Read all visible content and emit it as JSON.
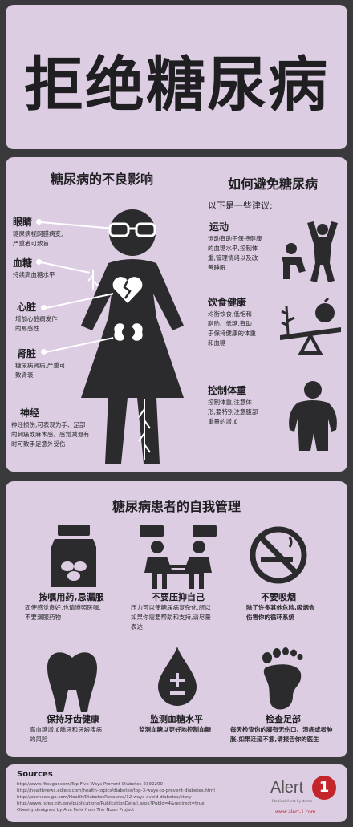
{
  "title": "拒绝糖尿病",
  "effects": {
    "heading": "糖尿病的不良影响",
    "eyes": {
      "label": "眼睛",
      "desc": [
        "糖尿病视网膜病变,",
        "严重者可致盲"
      ]
    },
    "blood_sugar": {
      "label": "血糖",
      "desc": [
        "持续高血糖水平"
      ]
    },
    "heart": {
      "label": "心脏",
      "desc": [
        "增加心脏病发作",
        "的易感性"
      ]
    },
    "kidney": {
      "label": "肾脏",
      "desc": [
        "糖尿病肾病,严重可",
        "致肾衰"
      ]
    },
    "nerves": {
      "label": "神经",
      "desc": [
        "神经损伤,可表现为手、足部",
        "的刺痛或麻木感。感觉减退有",
        "时可致手足意外受伤"
      ]
    }
  },
  "avoid": {
    "heading": "如何避免糖尿病",
    "intro": "以下是一些建议:",
    "exercise": {
      "label": "运动",
      "desc": [
        "运动有助于保持健康",
        "的血糖水平,控制体",
        "重,管理情绪以及改",
        "善睡眠"
      ]
    },
    "diet": {
      "label": "饮食健康",
      "desc": [
        "均衡饮食,低饱和",
        "脂肪、低糖,有助",
        "于保持健康的体重",
        "和血糖"
      ]
    },
    "weight": {
      "label": "控制体重",
      "desc": [
        "控制体重,注意体",
        "形,要特别注意腹部",
        "重量的增加"
      ]
    }
  },
  "self_management": {
    "heading": "糖尿病患者的自我管理",
    "items": [
      {
        "label": "按嘱用药,忌漏服",
        "desc": [
          "即使感觉良好,也请遵照医嘱,",
          "不要漏服药物"
        ]
      },
      {
        "label": "不要压抑自己",
        "desc": [
          "压力可以使糖尿病复杂化,所以",
          "如果你需要帮助和支持,请尽量",
          "表达"
        ]
      },
      {
        "label": "不要吸烟",
        "desc": [
          "除了许多其他危险,吸烟会",
          "伤害你的循环系统"
        ]
      },
      {
        "label": "保持牙齿健康",
        "desc": [
          "高血糖增加龋牙和牙龈疾病",
          "的风险"
        ]
      },
      {
        "label": "监测血糖水平",
        "desc": [
          "监测血糖以更好地控制血糖"
        ]
      },
      {
        "label": "检查足部",
        "desc": [
          "每天检查你的脚有无伤口、溃疡或者肿",
          "胀,如果迁延不愈,请报告你的医生"
        ]
      }
    ]
  },
  "sources": {
    "heading": "Sources",
    "lines": [
      "http://www.fitsugar.com/Top-Five-Ways-Prevent-Diabetes-2392200",
      "http://healthnews.ediets.com/health-topics/diabetes/top-3-ways-to-prevent-diabetes.html",
      "http://abcnews.go.com/Health/DiabetesResource/12-ways-avoid-diabetes/story",
      "http://www.ndep.nih.gov/publications/PublicationDetail.aspx?PubId=4&redirect=true",
      "Obesity designed by Ana Felix from The Noun Project"
    ]
  },
  "logo": {
    "text": "Alert",
    "tagline": "Medical Alert Systems",
    "url": "www.alert-1.com",
    "badge": "1"
  },
  "colors": {
    "panel": "#dccde3",
    "background": "#3a3a3d",
    "icon": "#2b2b2e",
    "accent": "#c4252a"
  }
}
